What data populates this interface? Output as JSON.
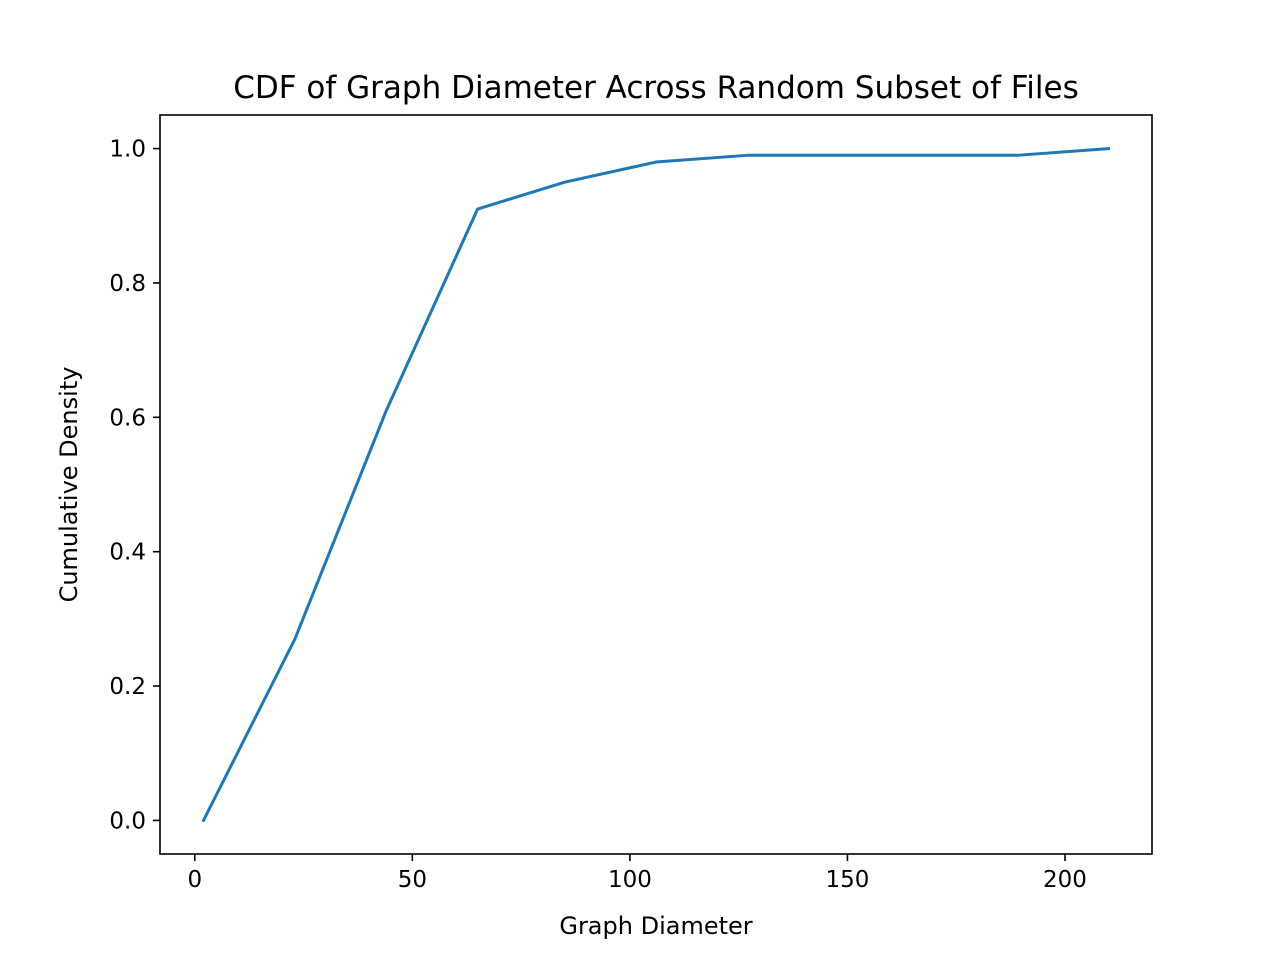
{
  "chart_data": {
    "type": "line",
    "title": "CDF of Graph Diameter Across Random Subset of Files",
    "xlabel": "Graph Diameter",
    "ylabel": "Cumulative Density",
    "xlim": [
      -8,
      220
    ],
    "ylim": [
      -0.05,
      1.05
    ],
    "xticks": [
      0,
      50,
      100,
      150,
      200
    ],
    "xtick_labels": [
      "0",
      "50",
      "100",
      "150",
      "200"
    ],
    "yticks": [
      0.0,
      0.2,
      0.4,
      0.6,
      0.8,
      1.0
    ],
    "ytick_labels": [
      "0.0",
      "0.2",
      "0.4",
      "0.6",
      "0.8",
      "1.0"
    ],
    "grid": false,
    "legend": "none",
    "series": [
      {
        "color": "#1f77b4",
        "x": [
          2,
          23,
          44,
          65,
          85,
          106,
          127,
          148,
          168,
          189,
          210
        ],
        "y": [
          0.0,
          0.27,
          0.61,
          0.91,
          0.95,
          0.98,
          0.99,
          0.99,
          0.99,
          0.99,
          1.0
        ]
      }
    ]
  }
}
